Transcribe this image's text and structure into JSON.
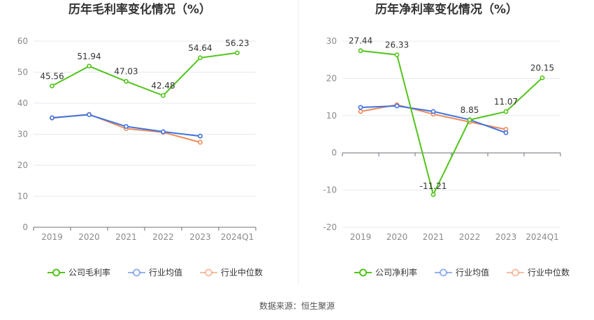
{
  "source": "数据来源：恒生聚源",
  "chart_data": [
    {
      "type": "line",
      "title": "历年毛利率变化情况（%）",
      "categories": [
        "2019",
        "2020",
        "2021",
        "2022",
        "2023",
        "2024Q1"
      ],
      "y_ticks": [
        "0",
        "10",
        "20",
        "30",
        "40",
        "50",
        "60"
      ],
      "ylim": [
        0,
        60
      ],
      "grid": "horizontal",
      "legend_position": "bottom",
      "series": [
        {
          "name": "公司毛利率",
          "color": "#52c41a",
          "values": [
            45.56,
            51.94,
            47.03,
            42.48,
            54.64,
            56.23
          ],
          "labels": [
            "45.56",
            "51.94",
            "47.03",
            "42.48",
            "54.64",
            "56.23"
          ]
        },
        {
          "name": "行业均值",
          "color": "#3f74e0",
          "values": [
            35.3,
            36.3,
            32.5,
            30.8,
            29.4,
            null
          ]
        },
        {
          "name": "行业中位数",
          "color": "#ee8a5a",
          "values": [
            35.2,
            36.4,
            31.8,
            30.6,
            27.4,
            null
          ]
        }
      ]
    },
    {
      "type": "line",
      "title": "历年净利率变化情况（%）",
      "categories": [
        "2019",
        "2020",
        "2021",
        "2022",
        "2023",
        "2024Q1"
      ],
      "y_ticks": [
        "-20",
        "-10",
        "0",
        "10",
        "20",
        "30"
      ],
      "ylim": [
        -20,
        30
      ],
      "grid": "horizontal",
      "legend_position": "bottom",
      "series": [
        {
          "name": "公司净利率",
          "color": "#52c41a",
          "values": [
            27.44,
            26.33,
            -11.21,
            8.85,
            11.07,
            20.15
          ],
          "labels": [
            "27.44",
            "26.33",
            "-11.21",
            "8.85",
            "11.07",
            "20.15"
          ]
        },
        {
          "name": "行业均值",
          "color": "#3f74e0",
          "values": [
            12.2,
            12.6,
            11.1,
            8.9,
            5.4,
            null
          ]
        },
        {
          "name": "行业中位数",
          "color": "#ee8a5a",
          "values": [
            11.1,
            12.9,
            10.4,
            8.3,
            6.3,
            null
          ]
        }
      ]
    }
  ]
}
